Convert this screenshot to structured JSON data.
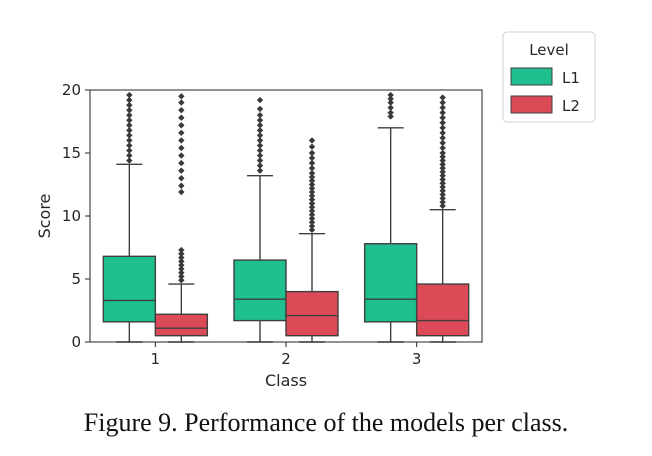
{
  "caption": "Figure 9. Performance of the models per class.",
  "colors": {
    "L1": "#1fbf8f",
    "L2": "#dd4a57",
    "line": "#3f3f3f"
  },
  "chart_data": {
    "type": "boxplot",
    "xlabel": "Class",
    "ylabel": "Score",
    "categories": [
      "1",
      "2",
      "3"
    ],
    "ylim": [
      0,
      20
    ],
    "yticks": [
      0,
      5,
      10,
      15,
      20
    ],
    "legend": {
      "title": "Level",
      "placement": "outside-top-right",
      "entries": [
        "L1",
        "L2"
      ]
    },
    "series": [
      {
        "name": "L1",
        "boxes": [
          {
            "category": "1",
            "min": 0,
            "q1": 1.6,
            "median": 3.3,
            "q3": 6.8,
            "whisker_high": 14.1,
            "outliers": [
              14.4,
              14.8,
              15.2,
              15.6,
              16.0,
              16.4,
              16.8,
              17.2,
              17.6,
              18.0,
              18.4,
              18.8,
              19.2,
              19.6
            ]
          },
          {
            "category": "2",
            "min": 0,
            "q1": 1.7,
            "median": 3.4,
            "q3": 6.5,
            "whisker_high": 13.2,
            "outliers": [
              13.6,
              14.0,
              14.4,
              14.8,
              15.2,
              15.6,
              16.0,
              16.4,
              16.8,
              17.2,
              17.6,
              18.0,
              18.5,
              19.2
            ]
          },
          {
            "category": "3",
            "min": 0,
            "q1": 1.6,
            "median": 3.4,
            "q3": 7.8,
            "whisker_high": 17.0,
            "outliers": [
              17.9,
              18.2,
              18.6,
              19.0,
              19.3,
              19.6
            ]
          }
        ]
      },
      {
        "name": "L2",
        "boxes": [
          {
            "category": "1",
            "min": 0,
            "q1": 0.5,
            "median": 1.1,
            "q3": 2.2,
            "whisker_high": 4.6,
            "outliers": [
              4.9,
              5.2,
              5.5,
              5.8,
              6.1,
              6.4,
              6.7,
              7.0,
              7.3,
              11.9,
              12.4,
              13.0,
              13.6,
              14.2,
              14.8,
              15.4,
              16.0,
              16.6,
              17.2,
              17.8,
              18.4,
              19.0,
              19.5
            ]
          },
          {
            "category": "2",
            "min": 0,
            "q1": 0.5,
            "median": 2.1,
            "q3": 4.0,
            "whisker_high": 8.6,
            "outliers": [
              8.9,
              9.2,
              9.5,
              9.8,
              10.1,
              10.4,
              10.7,
              11.0,
              11.3,
              11.6,
              11.9,
              12.2,
              12.5,
              12.8,
              13.1,
              13.4,
              13.8,
              14.2,
              14.6,
              15.0,
              15.5,
              16.0
            ]
          },
          {
            "category": "3",
            "min": 0,
            "q1": 0.5,
            "median": 1.7,
            "q3": 4.6,
            "whisker_high": 10.5,
            "outliers": [
              10.8,
              11.1,
              11.4,
              11.7,
              12.0,
              12.3,
              12.6,
              12.9,
              13.2,
              13.5,
              13.8,
              14.1,
              14.4,
              14.7,
              15.0,
              15.4,
              15.8,
              16.2,
              16.6,
              17.0,
              17.4,
              17.8,
              18.2,
              18.6,
              19.0,
              19.4
            ]
          }
        ]
      }
    ]
  }
}
